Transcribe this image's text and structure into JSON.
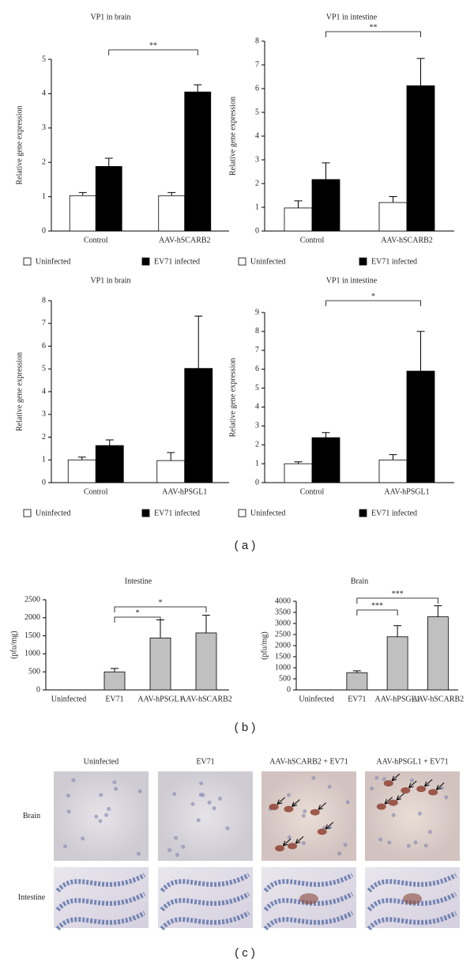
{
  "chart_data": [
    {
      "type": "bar",
      "title": "VP1 in brain",
      "y_label": "Relative gene expression",
      "categories": [
        "Control",
        "AAV-hSCARB2"
      ],
      "series": [
        {
          "name": "Uninfected",
          "color": "#ffffff",
          "values": [
            1.03,
            1.03
          ],
          "errors": [
            0.09,
            0.09
          ]
        },
        {
          "name": "EV71 infected",
          "color": "#000000",
          "values": [
            1.88,
            4.05
          ],
          "errors": [
            0.24,
            0.21
          ]
        }
      ],
      "ylim": [
        0,
        5
      ],
      "yticks": [
        0,
        1,
        2,
        3,
        4,
        5
      ],
      "annotations": [
        "**"
      ]
    },
    {
      "type": "bar",
      "title": "VP1 in intestine",
      "y_label": "Relative gene expression",
      "categories": [
        "Control",
        "AAV-hSCARB2"
      ],
      "series": [
        {
          "name": "Uninfected",
          "color": "#ffffff",
          "values": [
            0.97,
            1.2
          ],
          "errors": [
            0.3,
            0.25
          ]
        },
        {
          "name": "EV71 infected",
          "color": "#000000",
          "values": [
            2.17,
            6.12
          ],
          "errors": [
            0.7,
            1.15
          ]
        }
      ],
      "ylim": [
        0,
        8
      ],
      "yticks": [
        0,
        1,
        2,
        3,
        4,
        5,
        6,
        7,
        8
      ],
      "annotations": [
        "**"
      ]
    },
    {
      "type": "bar",
      "title": "VP1 in brain",
      "y_label": "Relative gene expression",
      "categories": [
        "Control",
        "AAV-hPSGL1"
      ],
      "series": [
        {
          "name": "Uninfected",
          "color": "#ffffff",
          "values": [
            1.0,
            0.97
          ],
          "errors": [
            0.12,
            0.35
          ]
        },
        {
          "name": "EV71 infected",
          "color": "#000000",
          "values": [
            1.63,
            5.02
          ],
          "errors": [
            0.25,
            2.3
          ]
        }
      ],
      "ylim": [
        0,
        8
      ],
      "yticks": [
        0,
        1,
        2,
        3,
        4,
        5,
        6,
        7,
        8
      ],
      "annotations": []
    },
    {
      "type": "bar",
      "title": "VP1 in intestine",
      "y_label": "Relative gene expression",
      "categories": [
        "Control",
        "AAV-hPSGL1"
      ],
      "series": [
        {
          "name": "Uninfected",
          "color": "#ffffff",
          "values": [
            1.0,
            1.2
          ],
          "errors": [
            0.1,
            0.28
          ]
        },
        {
          "name": "EV71 infected",
          "color": "#000000",
          "values": [
            2.38,
            5.9
          ],
          "errors": [
            0.27,
            2.1
          ]
        }
      ],
      "ylim": [
        0,
        9
      ],
      "yticks": [
        0,
        1,
        2,
        3,
        4,
        5,
        6,
        7,
        8,
        9
      ],
      "annotations": [
        "*"
      ]
    },
    {
      "type": "bar",
      "title": "Intestine",
      "y_label": "(pfu/mg)",
      "categories": [
        "Uninfected",
        "EV71",
        "AAV-hPSGL1",
        "AAV-hSCARB2"
      ],
      "values": [
        0,
        500,
        1440,
        1580
      ],
      "errors": [
        0,
        95,
        500,
        490
      ],
      "color": "#c0c0c0",
      "ylim": [
        0,
        2500
      ],
      "yticks": [
        0,
        500,
        1000,
        1500,
        2000,
        2500
      ],
      "annotations": [
        "*",
        "*"
      ]
    },
    {
      "type": "bar",
      "title": "Brain",
      "y_label": "(pfu/mg)",
      "categories": [
        "Uninfected",
        "EV71",
        "AAV-hPSGL1",
        "AAV-hSCARB2"
      ],
      "values": [
        0,
        780,
        2400,
        3300
      ],
      "errors": [
        0,
        80,
        500,
        500
      ],
      "color": "#c0c0c0",
      "ylim": [
        0,
        4000
      ],
      "yticks": [
        0,
        500,
        1000,
        1500,
        2000,
        2500,
        3000,
        3500,
        4000
      ],
      "annotations": [
        "***",
        "***"
      ]
    }
  ],
  "panel_labels": [
    "( a )",
    "( b )",
    "( c )"
  ],
  "micrographs": {
    "columns": [
      "Uninfected",
      "EV71",
      "AAV-hSCARB2 + EV71",
      "AAV-hPSGL1 + EV71"
    ],
    "rows": [
      "Brain",
      "Intestine"
    ]
  }
}
